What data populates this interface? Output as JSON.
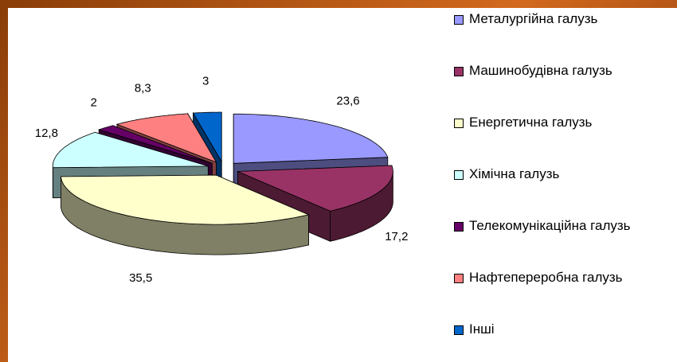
{
  "chart_data": {
    "type": "pie3d",
    "categories": [
      "Металургійна галузь",
      "Машинобудівна галузь",
      "Енергетична галузь",
      "Хімічна галузь",
      "Телекомунікаційна галузь",
      "Нафтепереробна галузь",
      "Інші"
    ],
    "values": [
      23.6,
      17.2,
      35.5,
      12.8,
      2,
      8.3,
      3
    ],
    "value_labels": [
      "23,6",
      "17,2",
      "35,5",
      "12,8",
      "2",
      "8,3",
      "3"
    ],
    "colors": [
      "#9999ff",
      "#993366",
      "#ffffcc",
      "#ccffff",
      "#660066",
      "#ff8080",
      "#0066cc"
    ],
    "legend": "right"
  }
}
